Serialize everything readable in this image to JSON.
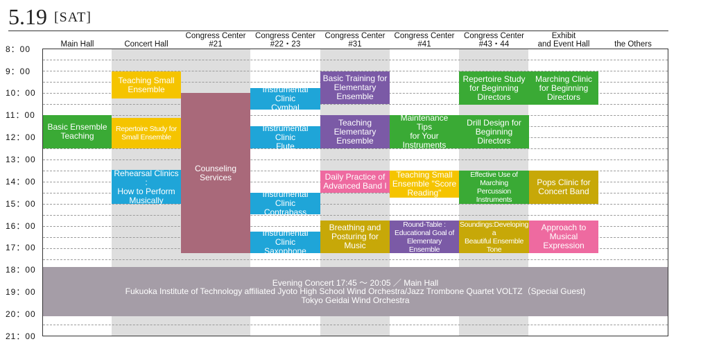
{
  "header": {
    "date": "5.19",
    "day": "[SAT]"
  },
  "columns": [
    "Main Hall",
    "Concert Hall",
    "Congress Center\n#21",
    "Congress Center\n#22・23",
    "Congress Center\n#31",
    "Congress Center\n#41",
    "Congress Center\n#43・44",
    "Exhibit\nand Event Hall",
    "the Others"
  ],
  "times": [
    "8：00",
    "9：00",
    "10：00",
    "11：00",
    "12：00",
    "13：00",
    "14：00",
    "15：00",
    "16：00",
    "17：00",
    "18：00",
    "19：00",
    "20：00",
    "21：00"
  ],
  "sessions": {
    "basic_ensemble": "Basic Ensemble\nTeaching",
    "teaching_small": "Teaching Small\nEnsemble",
    "repertoire_small": "Repertoire Study for\nSmall Ensemble",
    "rehearsal_clinics": "Rehearsal Clinics :\nHow to Perform\nMusically",
    "counseling": "Counseling Services",
    "clinic_cymbal": "Instrumental Clinic\nCymbal",
    "clinic_flute": "Instrumental Clinic\nFlute",
    "clinic_contrabass": "Instrumental Clinic\nContrabass",
    "clinic_saxophone": "Instrumental Clinic\nSaxophone",
    "basic_training": "Basic Training for\nElementary\nEnsemble",
    "teaching_elementary": "Teaching\nElementary\nEnsemble",
    "daily_practice": "Daily Practice of\nAdvanced Band I",
    "breathing": "Breathing and\nPosturing for\nMusic",
    "maintenance": "Maintenance Tips\nfor Your\nInstruments",
    "score_reading": "Teaching Small\nEnsemble \"Score\nReading\"",
    "round_table": "Round-Table :\nEducational Goal of\nElementary Ensemble",
    "repertoire_beginning": "Repertoire Study\nfor Beginning\nDirectors",
    "drill_design": "Drill Design for\nBeginning\nDirectors",
    "percussion": "Effective Use of\nMarching\nPercussion\nInstruments",
    "soundings": "Soundings:Developing a\nBeautiful Ensemble Tone",
    "marching_clinic": "Marching Clinic\nfor Beginning\nDirectors",
    "pops_clinic": "Pops Clinic for\nConcert Band",
    "approach_musical": "Approach to Musical\nExpression"
  },
  "evening": {
    "line1": "Evening Concert 17:45 ～ 20:05 ／ Main Hall",
    "line2": "Fukuoka Institute of Technology affiliated Jyoto High School  Wind Orchestra/Jazz Trombone Quartet VOLTZ（Special Guest)",
    "line3": "Tokyo Geidai Wind Orchestra"
  },
  "colors": {
    "green": "#3aaa35",
    "yellow": "#f5c400",
    "blue": "#1fa5d8",
    "purple": "#7b5aa6",
    "pink": "#ee6aa0",
    "olive": "#c7a808",
    "mauve": "#a9697a",
    "evening": "#a59da7",
    "stripe": "#dedede"
  }
}
